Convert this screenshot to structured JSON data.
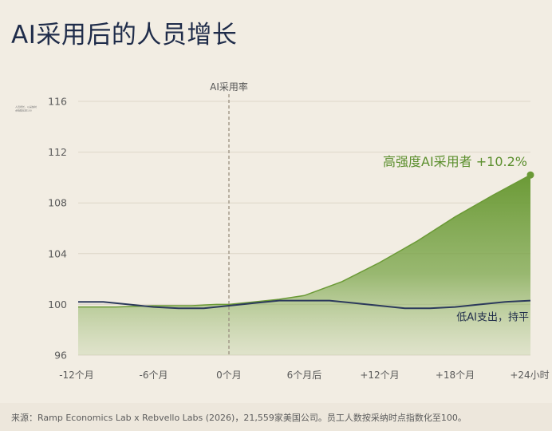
{
  "title": "AI采用后的人员增长",
  "footer": "来源：Ramp Economics Lab x Rebvello Labs (2026)，21,559家美国公司。员工人数按采纳时点指数化至100。",
  "chart_data": {
    "type": "area",
    "title": "AI采用后的人员增长",
    "xlabel": "",
    "ylabel": "",
    "ylim": [
      96,
      116
    ],
    "y_ticks": [
      96,
      100,
      104,
      108,
      112,
      116
    ],
    "x_tick_labels": [
      "-12个月",
      "-6个月",
      "0个月",
      "6个月后",
      "+12个月",
      "+18个月",
      "+24小时"
    ],
    "x_tick_values": [
      -12,
      -6,
      0,
      6,
      12,
      18,
      24
    ],
    "xlim": [
      -12,
      24
    ],
    "adoption_marker": {
      "x": 0,
      "label": "AI采用率"
    },
    "grid": true,
    "series": [
      {
        "name": "高强度AI采用者",
        "label": "高强度AI采用者 +10.2%",
        "color": "#6b9a36",
        "style": "area",
        "x": [
          -12,
          -9,
          -6,
          -3,
          -1,
          0,
          2,
          4,
          6,
          9,
          12,
          15,
          18,
          21,
          24
        ],
        "y": [
          99.8,
          99.8,
          99.9,
          99.9,
          100.0,
          100.0,
          100.2,
          100.4,
          100.7,
          101.8,
          103.3,
          105.0,
          106.9,
          108.6,
          110.2
        ]
      },
      {
        "name": "低AI支出，持平",
        "label": "低AI支出，持平",
        "color": "#2c3a5c",
        "style": "line",
        "x": [
          -12,
          -10,
          -8,
          -6,
          -4,
          -2,
          0,
          2,
          4,
          6,
          8,
          10,
          12,
          14,
          16,
          18,
          20,
          22,
          24
        ],
        "y": [
          100.2,
          100.2,
          100.0,
          99.8,
          99.7,
          99.7,
          99.9,
          100.1,
          100.3,
          100.3,
          100.3,
          100.1,
          99.9,
          99.7,
          99.7,
          99.8,
          100.0,
          100.2,
          100.3
        ]
      }
    ]
  },
  "y_axis_note": "人员增长，以采纳时点指数化至100"
}
